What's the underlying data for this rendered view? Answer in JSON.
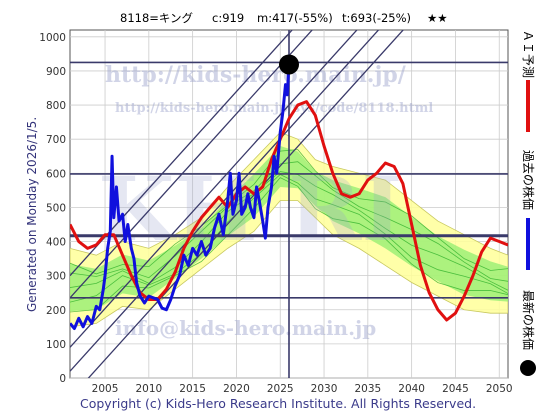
{
  "header": {
    "code_name": "8118=キング",
    "current": "c:919",
    "min": "m:417(-55%)",
    "target": "t:693(-25%)",
    "stars": "★★"
  },
  "footer": {
    "generated": "Generated on Monday 2026/1/5.",
    "copyright": "Copyright (c) Kids-Hero Research Institute. All Rights Reserved."
  },
  "watermarks": {
    "url1": "http://kids-hero.main.jp/",
    "url2": "http://kids-hero.main.jp/sys/code/8118.html",
    "mail": "info@kids-hero.main.jp",
    "big": "KH RI"
  },
  "legend": [
    {
      "label": "ＡＩ予測",
      "color": "#e01010"
    },
    {
      "label": "過去の株価",
      "color": "#1010dd"
    },
    {
      "label": "最新の株価",
      "color": "#000000"
    }
  ],
  "colors": {
    "actual": "#1010dd",
    "forecast": "#e01010",
    "band_fill": "#ffff99",
    "band_inner": "#90ee70",
    "band_line": "#22aa22",
    "reference_line": "#3a3a6a",
    "grid": "#cccccc"
  },
  "chart_data": {
    "type": "line",
    "xlim": [
      2001,
      2051
    ],
    "ylim": [
      0,
      1020
    ],
    "xticks": [
      2005,
      2010,
      2015,
      2020,
      2025,
      2030,
      2035,
      2040,
      2045,
      2050
    ],
    "yticks": [
      0,
      100,
      200,
      300,
      400,
      500,
      600,
      700,
      800,
      900,
      1000
    ],
    "grid": true,
    "latest_point": {
      "x": 2026.0,
      "y": 919
    },
    "horizontal_lines": [
      925,
      598,
      417,
      235
    ],
    "vertical_line_x": 2026.0,
    "diagonal_lines": [
      {
        "x1": 2001,
        "y1": 20,
        "x2": 2051,
        "y2": 1440
      },
      {
        "x1": 2001,
        "y1": 90,
        "x2": 2051,
        "y2": 1510
      },
      {
        "x1": 2001,
        "y1": 235,
        "x2": 2051,
        "y2": 1655
      },
      {
        "x1": 2001,
        "y1": 300,
        "x2": 2051,
        "y2": 1720
      },
      {
        "x1": 2001,
        "y1": -60,
        "x2": 2051,
        "y2": 1360
      }
    ],
    "series": [
      {
        "name": "過去の株価",
        "points": [
          [
            2001.0,
            160
          ],
          [
            2001.5,
            145
          ],
          [
            2002.0,
            175
          ],
          [
            2002.5,
            150
          ],
          [
            2003.0,
            180
          ],
          [
            2003.5,
            160
          ],
          [
            2004.0,
            210
          ],
          [
            2004.4,
            200
          ],
          [
            2004.8,
            260
          ],
          [
            2005.0,
            300
          ],
          [
            2005.3,
            380
          ],
          [
            2005.6,
            430
          ],
          [
            2005.8,
            650
          ],
          [
            2006.0,
            470
          ],
          [
            2006.3,
            560
          ],
          [
            2006.6,
            460
          ],
          [
            2007.0,
            480
          ],
          [
            2007.3,
            400
          ],
          [
            2007.6,
            450
          ],
          [
            2008.0,
            380
          ],
          [
            2008.3,
            350
          ],
          [
            2008.6,
            280
          ],
          [
            2009.0,
            240
          ],
          [
            2009.5,
            220
          ],
          [
            2010.0,
            240
          ],
          [
            2010.5,
            235
          ],
          [
            2011.0,
            230
          ],
          [
            2011.5,
            205
          ],
          [
            2012.0,
            200
          ],
          [
            2012.5,
            230
          ],
          [
            2013.0,
            270
          ],
          [
            2013.5,
            300
          ],
          [
            2014.0,
            360
          ],
          [
            2014.5,
            330
          ],
          [
            2015.0,
            380
          ],
          [
            2015.5,
            360
          ],
          [
            2016.0,
            400
          ],
          [
            2016.5,
            360
          ],
          [
            2017.0,
            380
          ],
          [
            2017.5,
            440
          ],
          [
            2018.0,
            480
          ],
          [
            2018.5,
            420
          ],
          [
            2019.0,
            520
          ],
          [
            2019.3,
            600
          ],
          [
            2019.6,
            480
          ],
          [
            2020.0,
            520
          ],
          [
            2020.3,
            600
          ],
          [
            2020.6,
            480
          ],
          [
            2021.0,
            500
          ],
          [
            2021.3,
            540
          ],
          [
            2021.6,
            500
          ],
          [
            2022.0,
            470
          ],
          [
            2022.3,
            560
          ],
          [
            2022.6,
            520
          ],
          [
            2023.0,
            460
          ],
          [
            2023.3,
            410
          ],
          [
            2023.6,
            500
          ],
          [
            2024.0,
            560
          ],
          [
            2024.3,
            650
          ],
          [
            2024.6,
            600
          ],
          [
            2025.0,
            720
          ],
          [
            2025.3,
            780
          ],
          [
            2025.6,
            860
          ],
          [
            2025.8,
            830
          ],
          [
            2026.0,
            919
          ]
        ]
      },
      {
        "name": "ＡＩ予測",
        "points": [
          [
            2001.0,
            450
          ],
          [
            2002.0,
            400
          ],
          [
            2003.0,
            380
          ],
          [
            2004.0,
            390
          ],
          [
            2005.0,
            420
          ],
          [
            2006.0,
            420
          ],
          [
            2007.0,
            360
          ],
          [
            2008.0,
            300
          ],
          [
            2009.0,
            250
          ],
          [
            2010.0,
            230
          ],
          [
            2011.0,
            230
          ],
          [
            2012.0,
            260
          ],
          [
            2013.0,
            310
          ],
          [
            2014.0,
            380
          ],
          [
            2015.0,
            430
          ],
          [
            2016.0,
            470
          ],
          [
            2017.0,
            500
          ],
          [
            2018.0,
            530
          ],
          [
            2019.0,
            500
          ],
          [
            2020.0,
            540
          ],
          [
            2021.0,
            560
          ],
          [
            2022.0,
            540
          ],
          [
            2023.0,
            560
          ],
          [
            2024.0,
            640
          ],
          [
            2025.0,
            700
          ],
          [
            2026.0,
            760
          ],
          [
            2027.0,
            800
          ],
          [
            2028.0,
            810
          ],
          [
            2029.0,
            770
          ],
          [
            2030.0,
            680
          ],
          [
            2031.0,
            600
          ],
          [
            2032.0,
            540
          ],
          [
            2033.0,
            530
          ],
          [
            2034.0,
            540
          ],
          [
            2035.0,
            580
          ],
          [
            2036.0,
            600
          ],
          [
            2037.0,
            630
          ],
          [
            2038.0,
            620
          ],
          [
            2039.0,
            570
          ],
          [
            2040.0,
            450
          ],
          [
            2041.0,
            330
          ],
          [
            2042.0,
            250
          ],
          [
            2043.0,
            200
          ],
          [
            2044.0,
            170
          ],
          [
            2045.0,
            190
          ],
          [
            2046.0,
            240
          ],
          [
            2047.0,
            300
          ],
          [
            2048.0,
            370
          ],
          [
            2049.0,
            410
          ],
          [
            2050.0,
            400
          ],
          [
            2051.0,
            390
          ]
        ]
      }
    ],
    "band": {
      "upper": [
        [
          2001,
          380
        ],
        [
          2004,
          360
        ],
        [
          2007,
          400
        ],
        [
          2010,
          380
        ],
        [
          2013,
          420
        ],
        [
          2016,
          470
        ],
        [
          2019,
          560
        ],
        [
          2022,
          640
        ],
        [
          2025,
          720
        ],
        [
          2027,
          700
        ],
        [
          2029,
          640
        ],
        [
          2031,
          620
        ],
        [
          2034,
          600
        ],
        [
          2037,
          580
        ],
        [
          2040,
          520
        ],
        [
          2043,
          460
        ],
        [
          2046,
          420
        ],
        [
          2049,
          380
        ],
        [
          2051,
          360
        ]
      ],
      "lower": [
        [
          2001,
          150
        ],
        [
          2004,
          160
        ],
        [
          2007,
          210
        ],
        [
          2010,
          200
        ],
        [
          2013,
          260
        ],
        [
          2016,
          320
        ],
        [
          2019,
          380
        ],
        [
          2022,
          430
        ],
        [
          2025,
          520
        ],
        [
          2027,
          520
        ],
        [
          2029,
          470
        ],
        [
          2031,
          420
        ],
        [
          2034,
          380
        ],
        [
          2037,
          330
        ],
        [
          2040,
          280
        ],
        [
          2043,
          240
        ],
        [
          2046,
          200
        ],
        [
          2049,
          190
        ],
        [
          2051,
          190
        ]
      ]
    }
  }
}
